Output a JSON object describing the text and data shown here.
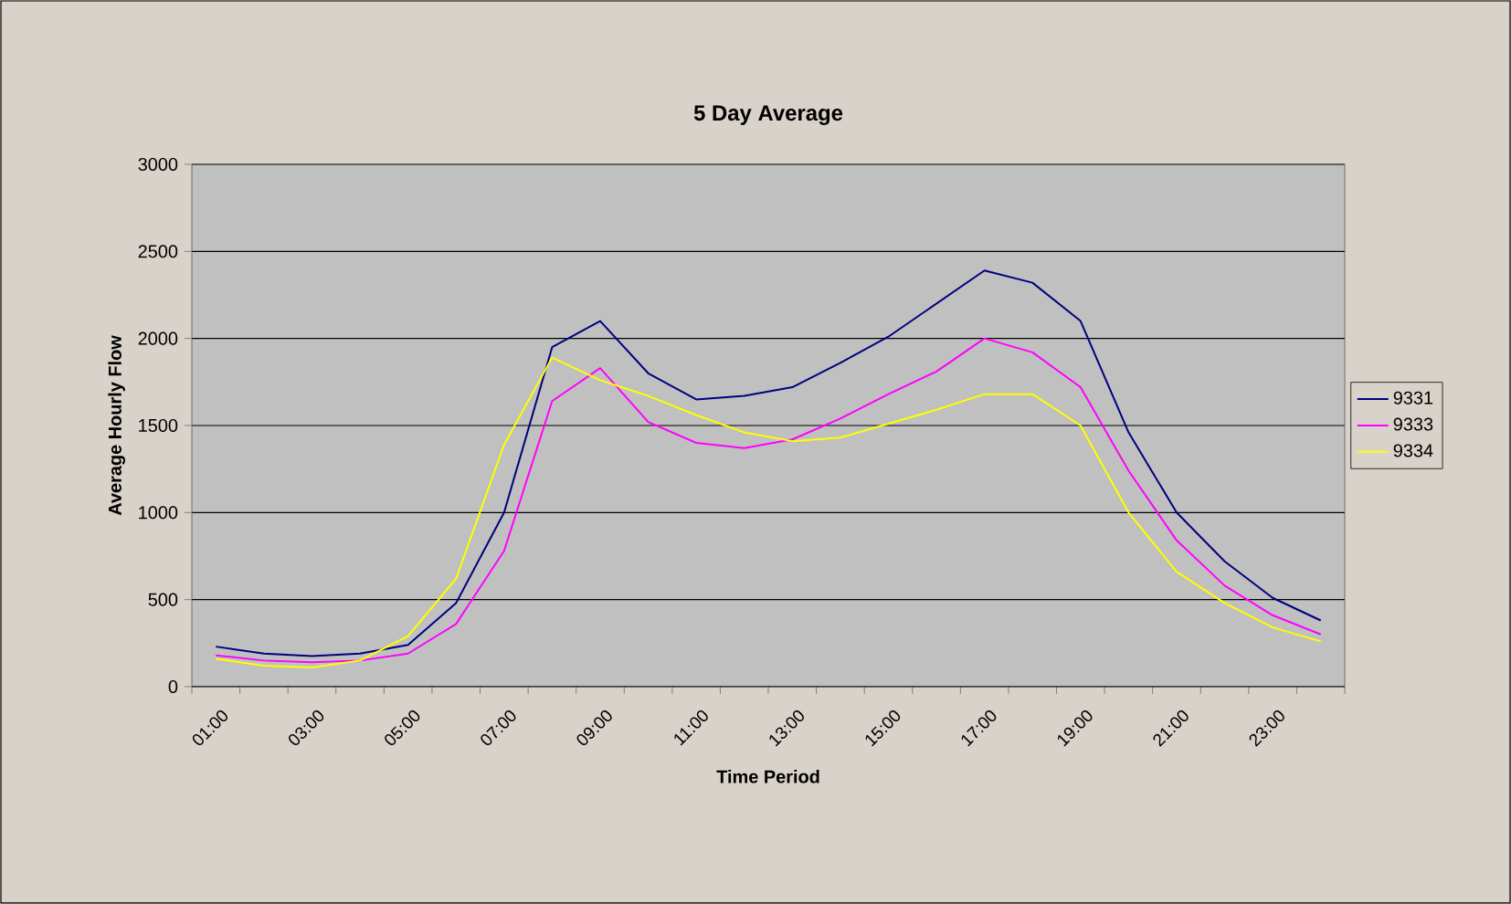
{
  "chart_data": {
    "type": "line",
    "title": "5 Day Average",
    "xlabel": "Time Period",
    "ylabel": "Average Hourly Flow",
    "categories": [
      "01:00",
      null,
      "03:00",
      null,
      "05:00",
      null,
      "07:00",
      null,
      "09:00",
      null,
      "11:00",
      null,
      "13:00",
      null,
      "15:00",
      null,
      "17:00",
      null,
      "19:00",
      null,
      "21:00",
      null,
      "23:00",
      null
    ],
    "series": [
      {
        "name": "9331",
        "color": "#000080",
        "values": [
          230,
          190,
          175,
          190,
          240,
          480,
          1000,
          1950,
          2100,
          1800,
          1650,
          1670,
          1720,
          1860,
          2010,
          2200,
          2390,
          2320,
          2100,
          1460,
          1000,
          720,
          510,
          380
        ]
      },
      {
        "name": "9333",
        "color": "#ff00ff",
        "values": [
          180,
          150,
          140,
          150,
          190,
          360,
          780,
          1640,
          1830,
          1520,
          1400,
          1370,
          1420,
          1540,
          1680,
          1810,
          2000,
          1920,
          1720,
          1240,
          840,
          580,
          410,
          300
        ]
      },
      {
        "name": "9334",
        "color": "#ffff00",
        "values": [
          160,
          120,
          110,
          150,
          290,
          620,
          1390,
          1890,
          1760,
          1670,
          1560,
          1460,
          1410,
          1430,
          1510,
          1590,
          1680,
          1680,
          1500,
          1000,
          660,
          480,
          340,
          260
        ]
      }
    ],
    "ylim": [
      0,
      3000
    ],
    "yticks": [
      0,
      500,
      1000,
      1500,
      2000,
      2500,
      3000
    ],
    "grid": "y",
    "legend": "right",
    "marker": "none",
    "line_style": "solid"
  }
}
